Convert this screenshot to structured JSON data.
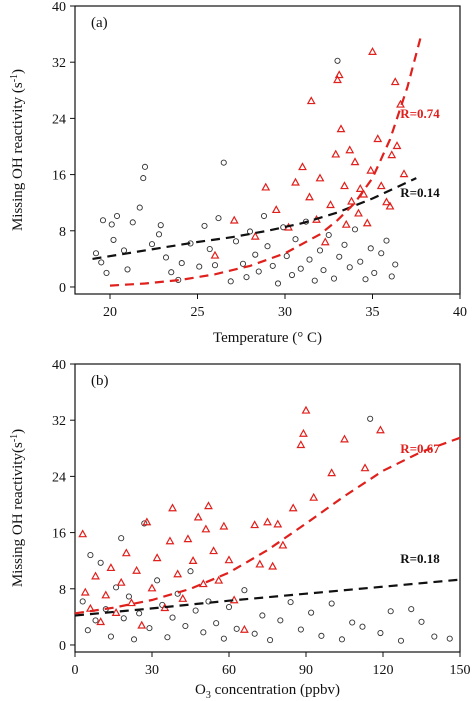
{
  "figure": {
    "panels": [
      "(a)",
      "(b)"
    ]
  },
  "chart_data": [
    {
      "type": "scatter",
      "panel_label": "(a)",
      "xlabel": "Temperature (° C)",
      "ylabel": "Missing OH reactivity (s-1)",
      "xlim": [
        18,
        40
      ],
      "ylim": [
        -1,
        40
      ],
      "xticks": [
        20,
        25,
        30,
        35,
        40
      ],
      "yticks": [
        0,
        8,
        16,
        24,
        32,
        40
      ],
      "grid": false,
      "series": [
        {
          "marker": "circle-open",
          "color": "#333333",
          "points": [
            [
              19.8,
              2.0
            ],
            [
              19.5,
              3.5
            ],
            [
              19.2,
              4.8
            ],
            [
              19.6,
              9.5
            ],
            [
              20.1,
              8.9
            ],
            [
              20.4,
              10.1
            ],
            [
              20.8,
              5.2
            ],
            [
              20.2,
              6.7
            ],
            [
              21.0,
              2.5
            ],
            [
              21.3,
              9.2
            ],
            [
              21.7,
              11.3
            ],
            [
              22.0,
              17.1
            ],
            [
              21.9,
              15.5
            ],
            [
              22.4,
              6.1
            ],
            [
              22.8,
              7.5
            ],
            [
              22.9,
              8.8
            ],
            [
              23.2,
              4.2
            ],
            [
              23.5,
              2.1
            ],
            [
              23.9,
              1.0
            ],
            [
              24.1,
              3.4
            ],
            [
              24.6,
              6.2
            ],
            [
              25.1,
              2.9
            ],
            [
              25.4,
              8.7
            ],
            [
              25.7,
              5.4
            ],
            [
              26.0,
              3.1
            ],
            [
              26.2,
              9.8
            ],
            [
              26.5,
              17.7
            ],
            [
              26.9,
              0.8
            ],
            [
              27.2,
              6.5
            ],
            [
              27.6,
              3.3
            ],
            [
              27.8,
              1.4
            ],
            [
              28.0,
              7.9
            ],
            [
              28.3,
              4.6
            ],
            [
              28.5,
              2.2
            ],
            [
              28.8,
              10.1
            ],
            [
              29.0,
              5.8
            ],
            [
              29.3,
              3.0
            ],
            [
              29.6,
              0.5
            ],
            [
              29.9,
              8.5
            ],
            [
              30.1,
              4.4
            ],
            [
              30.4,
              1.7
            ],
            [
              30.6,
              6.8
            ],
            [
              30.9,
              2.6
            ],
            [
              31.2,
              9.3
            ],
            [
              31.4,
              3.9
            ],
            [
              31.7,
              0.9
            ],
            [
              32.0,
              5.2
            ],
            [
              32.2,
              2.4
            ],
            [
              32.5,
              7.4
            ],
            [
              32.8,
              1.2
            ],
            [
              33.0,
              32.2
            ],
            [
              33.1,
              4.3
            ],
            [
              33.4,
              6.0
            ],
            [
              33.7,
              2.8
            ],
            [
              34.0,
              8.2
            ],
            [
              34.3,
              3.6
            ],
            [
              34.6,
              1.1
            ],
            [
              34.9,
              5.5
            ],
            [
              35.1,
              2.0
            ],
            [
              35.5,
              4.8
            ],
            [
              35.8,
              6.6
            ],
            [
              36.1,
              1.5
            ],
            [
              36.3,
              3.2
            ]
          ]
        },
        {
          "marker": "triangle-open",
          "color": "#e0201c",
          "points": [
            [
              26.0,
              4.5
            ],
            [
              27.1,
              9.5
            ],
            [
              28.3,
              7.2
            ],
            [
              28.9,
              14.2
            ],
            [
              29.5,
              11.0
            ],
            [
              30.2,
              8.5
            ],
            [
              30.6,
              14.9
            ],
            [
              31.0,
              17.1
            ],
            [
              31.4,
              12.8
            ],
            [
              31.5,
              26.5
            ],
            [
              31.8,
              9.6
            ],
            [
              32.0,
              15.5
            ],
            [
              32.3,
              6.4
            ],
            [
              32.6,
              11.7
            ],
            [
              32.9,
              18.9
            ],
            [
              33.0,
              29.5
            ],
            [
              33.1,
              30.2
            ],
            [
              33.2,
              22.5
            ],
            [
              33.4,
              14.4
            ],
            [
              33.5,
              8.9
            ],
            [
              33.7,
              19.5
            ],
            [
              33.8,
              12.2
            ],
            [
              34.0,
              17.8
            ],
            [
              34.2,
              10.5
            ],
            [
              34.3,
              14.0
            ],
            [
              34.5,
              13.2
            ],
            [
              34.7,
              9.1
            ],
            [
              34.9,
              16.6
            ],
            [
              35.0,
              33.5
            ],
            [
              35.3,
              21.1
            ],
            [
              35.5,
              14.4
            ],
            [
              35.8,
              12.1
            ],
            [
              36.0,
              11.5
            ],
            [
              36.1,
              18.8
            ],
            [
              36.3,
              29.2
            ],
            [
              36.4,
              20.1
            ],
            [
              36.6,
              26.0
            ],
            [
              36.8,
              16.1
            ]
          ]
        }
      ],
      "fit_lines": [
        {
          "label": "R=0.14",
          "color": "#111111",
          "points": [
            [
              19,
              4.0
            ],
            [
              21,
              4.8
            ],
            [
              23,
              5.6
            ],
            [
              25,
              6.4
            ],
            [
              27,
              7.1
            ],
            [
              29,
              8.0
            ],
            [
              31,
              9.1
            ],
            [
              33,
              10.6
            ],
            [
              35,
              12.6
            ],
            [
              37.5,
              15.5
            ]
          ]
        },
        {
          "label": "R=0.74",
          "color": "#e0201c",
          "points": [
            [
              20,
              0.2
            ],
            [
              22,
              0.5
            ],
            [
              24,
              1.0
            ],
            [
              26,
              1.8
            ],
            [
              28,
              3.0
            ],
            [
              30,
              4.8
            ],
            [
              32,
              7.5
            ],
            [
              33,
              9.5
            ],
            [
              34,
              12.0
            ],
            [
              35,
              15.5
            ],
            [
              36,
              21.0
            ],
            [
              37,
              28.5
            ],
            [
              37.8,
              36.0
            ]
          ]
        }
      ]
    },
    {
      "type": "scatter",
      "panel_label": "(b)",
      "xlabel": "O3 concentration (ppbv)",
      "ylabel": "Missing OH reactivity(s-1)",
      "xlim": [
        0,
        150
      ],
      "ylim": [
        -1,
        40
      ],
      "xticks": [
        0,
        30,
        60,
        90,
        120,
        150
      ],
      "yticks": [
        0,
        8,
        16,
        24,
        32,
        40
      ],
      "grid": false,
      "series": [
        {
          "marker": "circle-open",
          "color": "#333333",
          "points": [
            [
              3,
              6.2
            ],
            [
              5,
              2.1
            ],
            [
              6,
              12.8
            ],
            [
              8,
              3.5
            ],
            [
              10,
              11.7
            ],
            [
              12,
              5.1
            ],
            [
              14,
              1.2
            ],
            [
              16,
              8.2
            ],
            [
              18,
              15.2
            ],
            [
              19,
              3.8
            ],
            [
              21,
              6.9
            ],
            [
              23,
              0.8
            ],
            [
              25,
              4.5
            ],
            [
              27,
              17.3
            ],
            [
              29,
              2.4
            ],
            [
              32,
              9.2
            ],
            [
              34,
              5.7
            ],
            [
              36,
              1.1
            ],
            [
              38,
              3.9
            ],
            [
              40,
              7.3
            ],
            [
              43,
              2.7
            ],
            [
              45,
              10.5
            ],
            [
              47,
              4.9
            ],
            [
              50,
              1.8
            ],
            [
              52,
              6.2
            ],
            [
              55,
              3.1
            ],
            [
              58,
              0.9
            ],
            [
              60,
              5.4
            ],
            [
              63,
              2.3
            ],
            [
              66,
              7.8
            ],
            [
              70,
              1.6
            ],
            [
              73,
              4.2
            ],
            [
              76,
              0.7
            ],
            [
              80,
              3.5
            ],
            [
              84,
              6.1
            ],
            [
              88,
              2.2
            ],
            [
              92,
              4.6
            ],
            [
              96,
              1.3
            ],
            [
              100,
              5.9
            ],
            [
              104,
              0.8
            ],
            [
              108,
              3.2
            ],
            [
              112,
              2.6
            ],
            [
              115,
              32.2
            ],
            [
              119,
              1.7
            ],
            [
              123,
              4.8
            ],
            [
              127,
              0.6
            ],
            [
              131,
              5.1
            ],
            [
              135,
              3.3
            ],
            [
              140,
              1.2
            ],
            [
              146,
              0.9
            ]
          ]
        },
        {
          "marker": "triangle-open",
          "color": "#e0201c",
          "points": [
            [
              3,
              15.8
            ],
            [
              4,
              7.5
            ],
            [
              6,
              5.2
            ],
            [
              8,
              9.8
            ],
            [
              10,
              3.3
            ],
            [
              12,
              7.1
            ],
            [
              14,
              11.0
            ],
            [
              16,
              4.6
            ],
            [
              18,
              8.9
            ],
            [
              20,
              13.1
            ],
            [
              22,
              6.0
            ],
            [
              24,
              10.6
            ],
            [
              26,
              2.8
            ],
            [
              28,
              17.5
            ],
            [
              30,
              8.1
            ],
            [
              32,
              12.4
            ],
            [
              35,
              5.3
            ],
            [
              37,
              14.8
            ],
            [
              38,
              19.5
            ],
            [
              40,
              10.1
            ],
            [
              42,
              6.6
            ],
            [
              44,
              15.1
            ],
            [
              46,
              12.0
            ],
            [
              48,
              18.2
            ],
            [
              50,
              8.7
            ],
            [
              51,
              16.5
            ],
            [
              52,
              19.8
            ],
            [
              54,
              13.4
            ],
            [
              56,
              9.2
            ],
            [
              58,
              16.9
            ],
            [
              60,
              12.1
            ],
            [
              62,
              6.4
            ],
            [
              66,
              2.2
            ],
            [
              70,
              17.1
            ],
            [
              72,
              11.5
            ],
            [
              75,
              17.5
            ],
            [
              77,
              11.2
            ],
            [
              79,
              17.2
            ],
            [
              81,
              14.2
            ],
            [
              85,
              19.5
            ],
            [
              88,
              28.5
            ],
            [
              89,
              30.1
            ],
            [
              90,
              33.4
            ],
            [
              93,
              21.0
            ],
            [
              100,
              24.5
            ],
            [
              105,
              29.3
            ],
            [
              113,
              25.2
            ],
            [
              119,
              30.6
            ]
          ]
        }
      ],
      "fit_lines": [
        {
          "label": "R=0.18",
          "color": "#111111",
          "points": [
            [
              0,
              4.2
            ],
            [
              30,
              5.2
            ],
            [
              60,
              6.3
            ],
            [
              90,
              7.3
            ],
            [
              120,
              8.3
            ],
            [
              150,
              9.3
            ]
          ]
        },
        {
          "label": "R=0.67",
          "color": "#e0201c",
          "points": [
            [
              0,
              4.5
            ],
            [
              15,
              5.3
            ],
            [
              30,
              6.4
            ],
            [
              45,
              8.0
            ],
            [
              60,
              10.3
            ],
            [
              75,
              13.5
            ],
            [
              90,
              17.3
            ],
            [
              105,
              21.2
            ],
            [
              120,
              24.8
            ],
            [
              135,
              27.5
            ],
            [
              150,
              29.5
            ]
          ]
        }
      ]
    }
  ]
}
